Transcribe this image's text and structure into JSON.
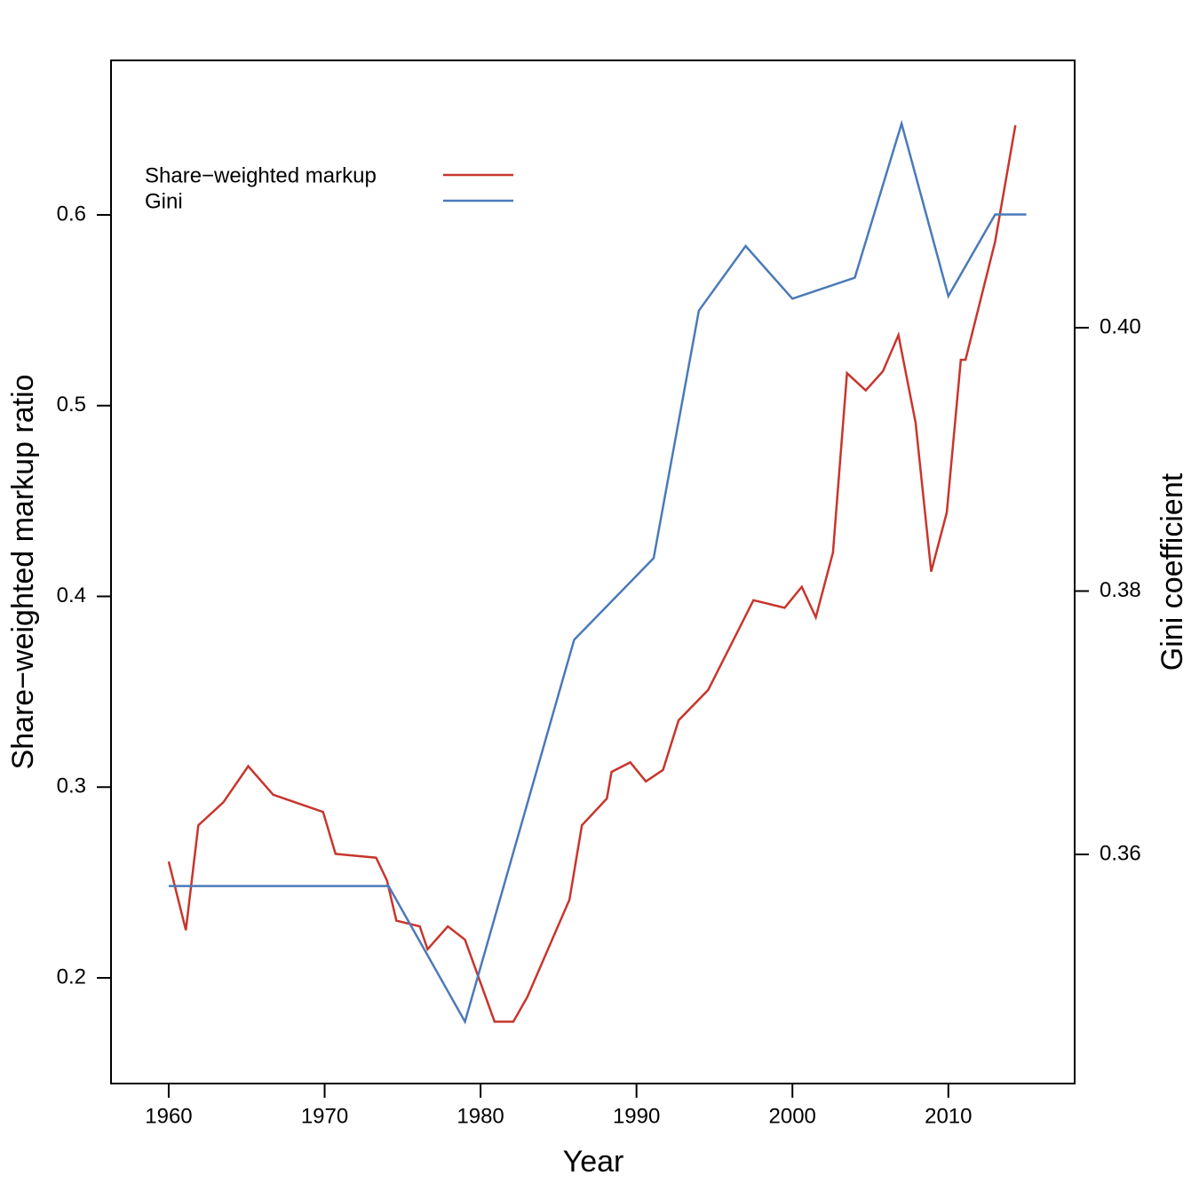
{
  "chart_data": {
    "type": "line",
    "xlabel": "Year",
    "ylabel": "Share−weighted markup ratio",
    "y2label": "Gini coefficient",
    "xlim": [
      1956.3,
      2018.1
    ],
    "ylim": [
      0.1446,
      0.681
    ],
    "y2lim": [
      0.3426,
      0.4203
    ],
    "xticks": [
      1960,
      1970,
      1980,
      1990,
      2000,
      2010
    ],
    "yticks": [
      0.2,
      0.3,
      0.4,
      0.5,
      0.6
    ],
    "y2ticks": [
      0.36,
      0.38,
      {
        "value": 0.4,
        "label": "0.40"
      }
    ],
    "legend": "upper left",
    "series": [
      {
        "name": "Share−weighted markup",
        "color": "#c8352d",
        "axis": "y",
        "x": [
          1960,
          1961.1,
          1961.9,
          1963.5,
          1965.1,
          1966.7,
          1969.9,
          1970.7,
          1973.3,
          1974.0,
          1974.6,
          1976.1,
          1976.6,
          1977.9,
          1979.0,
          1980.9,
          1982.1,
          1983.0,
          1985.7,
          1986.5,
          1988.1,
          1988.4,
          1989.6,
          1990.6,
          1991.7,
          1992.7,
          1994.6,
          1997.5,
          1999.5,
          2000.6,
          2001.5,
          2002.6,
          2003.5,
          2004.7,
          2005.8,
          2006.8,
          2007.9,
          2008.9,
          2009.9,
          2010.8,
          2011.1,
          2013.0,
          2014.3
        ],
        "values": [
          0.261,
          0.225,
          0.28,
          0.292,
          0.311,
          0.296,
          0.287,
          0.265,
          0.263,
          0.251,
          0.23,
          0.227,
          0.215,
          0.227,
          0.22,
          0.177,
          0.177,
          0.19,
          0.241,
          0.28,
          0.294,
          0.308,
          0.313,
          0.303,
          0.309,
          0.335,
          0.351,
          0.398,
          0.394,
          0.405,
          0.389,
          0.423,
          0.517,
          0.508,
          0.518,
          0.537,
          0.491,
          0.413,
          0.444,
          0.524,
          0.524,
          0.586,
          0.647
        ]
      },
      {
        "name": "Gini",
        "color": "#4a7ab8",
        "axis": "y2",
        "x": [
          1960,
          1974.1,
          1979.0,
          1986.0,
          1991.1,
          1994.0,
          1997.0,
          2000.0,
          2004.0,
          2007.0,
          2010.0,
          2013.0,
          2015.0
        ],
        "values": [
          0.3576,
          0.3576,
          0.3473,
          0.3763,
          0.3825,
          0.4013,
          0.4062,
          0.4022,
          0.4038,
          0.4155,
          0.4024,
          0.4086,
          0.4086
        ]
      }
    ]
  }
}
